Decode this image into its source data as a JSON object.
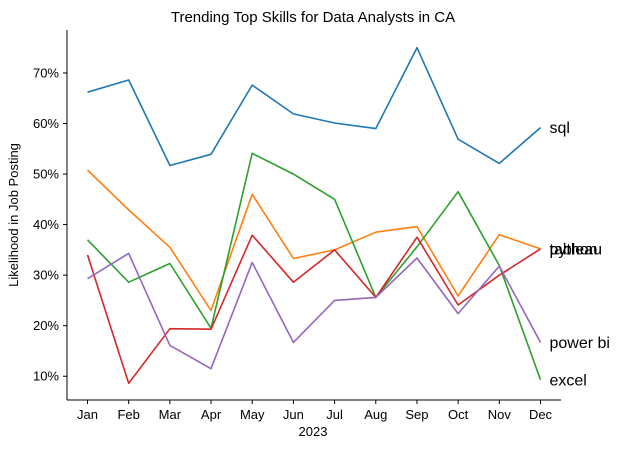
{
  "chart_data": {
    "type": "line",
    "title": "Trending Top Skills for Data Analysts in CA",
    "xlabel": "2023",
    "ylabel": "Likelihood in Job Posting",
    "categories": [
      "Jan",
      "Feb",
      "Mar",
      "Apr",
      "May",
      "Jun",
      "Jul",
      "Aug",
      "Sep",
      "Oct",
      "Nov",
      "Dec"
    ],
    "ylim": [
      5.3,
      78.5
    ],
    "yticks": [
      10,
      20,
      30,
      40,
      50,
      60,
      70
    ],
    "ytick_labels": [
      "10%",
      "20%",
      "30%",
      "40%",
      "50%",
      "60%",
      "70%"
    ],
    "grid": false,
    "legend": "none (series labeled at line ends)",
    "series": [
      {
        "name": "sql",
        "color": "#1f77b4",
        "values": [
          66.2,
          68.6,
          51.7,
          53.9,
          67.6,
          61.9,
          60.1,
          59.0,
          75.0,
          56.9,
          52.1,
          59.2
        ]
      },
      {
        "name": "python",
        "color": "#ff7f0e",
        "values": [
          50.8,
          42.9,
          35.5,
          23.0,
          46.0,
          33.3,
          35.0,
          38.5,
          39.6,
          25.9,
          38.0,
          35.2
        ]
      },
      {
        "name": "excel",
        "color": "#2ca02c",
        "values": [
          37.0,
          28.6,
          32.3,
          19.5,
          54.1,
          50.0,
          45.0,
          25.6,
          35.6,
          46.5,
          31.9,
          9.3
        ]
      },
      {
        "name": "tableau",
        "color": "#d62728",
        "values": [
          34.0,
          8.6,
          19.4,
          19.3,
          37.9,
          28.6,
          35.0,
          25.6,
          37.5,
          24.1,
          30.0,
          35.2
        ]
      },
      {
        "name": "power bi",
        "color": "#9467bd",
        "values": [
          29.3,
          34.3,
          16.1,
          11.5,
          32.5,
          16.7,
          25.0,
          25.6,
          33.4,
          22.4,
          31.8,
          16.7
        ]
      }
    ]
  }
}
